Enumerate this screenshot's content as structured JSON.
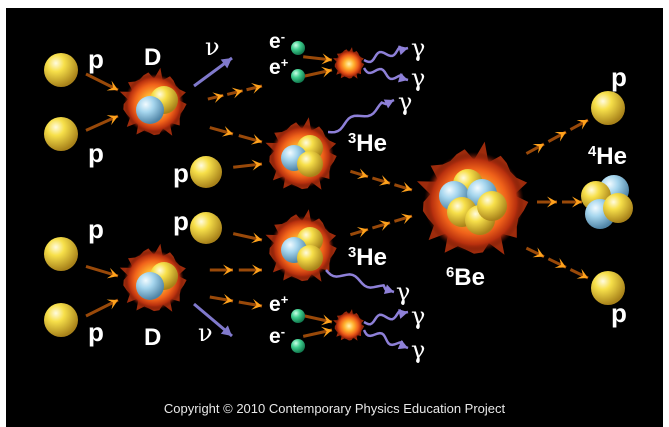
{
  "labels": {
    "proton": "p",
    "deuterium": "D",
    "neutrino": "ν",
    "electron": "e",
    "electron_sign": "-",
    "positron": "e",
    "positron_sign": "+",
    "gamma": "γ",
    "helium3_mass": "3",
    "helium3": "He",
    "beryllium6_mass": "6",
    "beryllium6": "Be",
    "helium4_mass": "4",
    "helium4": "He"
  },
  "footer": "Copyright © 2010 Contemporary Physics Education Project",
  "colors": {
    "background": "#000000",
    "proton": "#f2d23a",
    "neutron": "#9fd0ea",
    "electron": "#34c48a",
    "arrow": "#f29a1e",
    "neutrino_arrow": "#7f78c8",
    "gamma_arrow": "#8e7fd6",
    "fireball": "#f06a1a"
  },
  "icons": [
    "proton-sphere",
    "neutron-sphere",
    "fusion-fireball",
    "reaction-arrow",
    "neutrino-arrow",
    "gamma-wavy-arrow",
    "electron-dot"
  ]
}
